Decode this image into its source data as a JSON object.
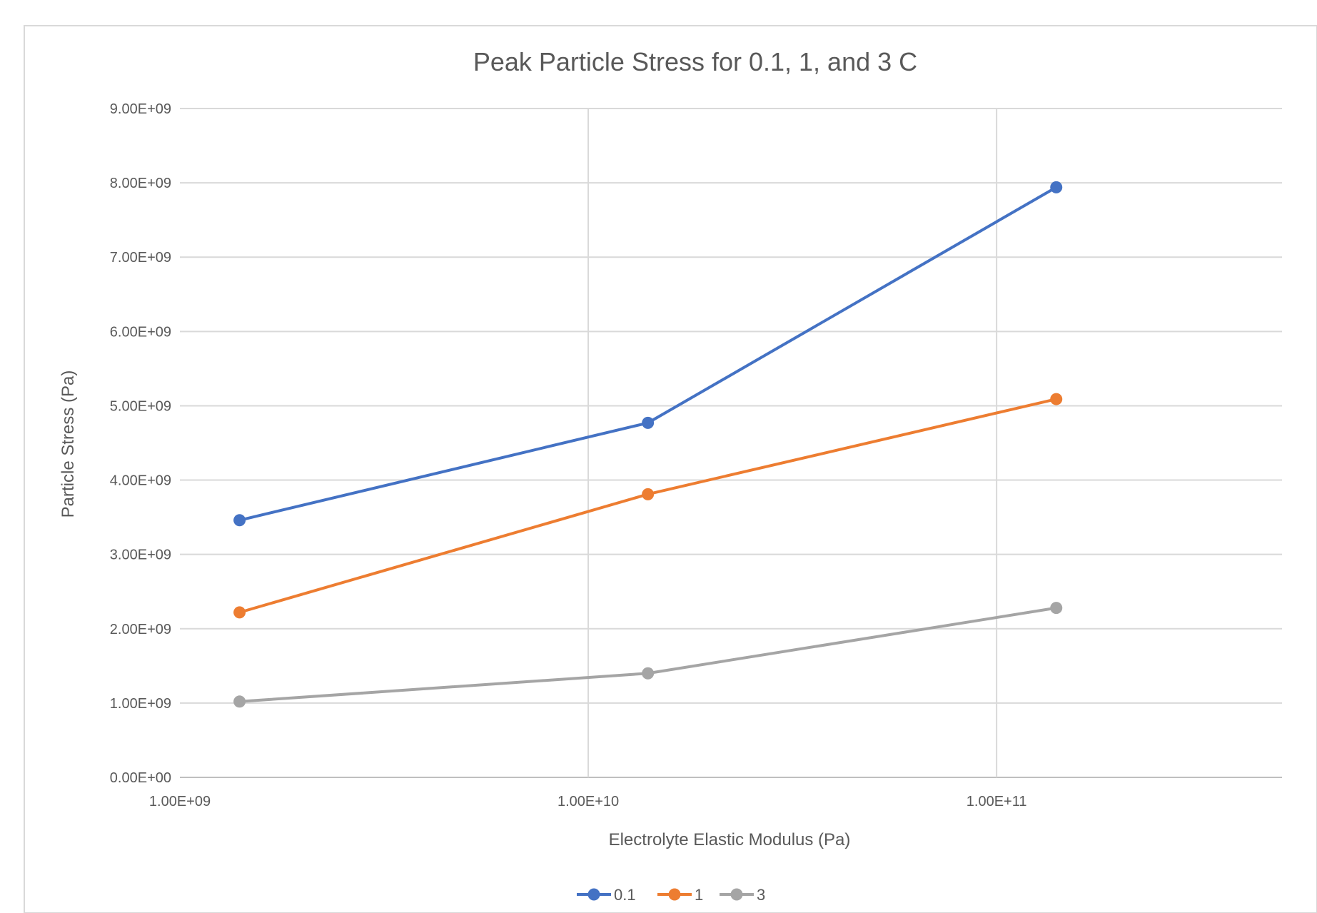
{
  "chart_data": {
    "type": "line",
    "title": "Peak Particle Stress for 0.1, 1, and 3 C",
    "xlabel": "Electrolyte Elastic Modulus (Pa)",
    "ylabel": "Particle Stress (Pa)",
    "x_scale": "log",
    "xlim": [
      1000000000,
      500000000000
    ],
    "ylim": [
      0,
      9000000000
    ],
    "x_ticks": [
      1000000000,
      10000000000,
      100000000000
    ],
    "x_tick_labels": [
      "1.00E+09",
      "1.00E+10",
      "1.00E+11"
    ],
    "y_ticks": [
      0,
      1000000000,
      2000000000,
      3000000000,
      4000000000,
      5000000000,
      6000000000,
      7000000000,
      8000000000,
      9000000000
    ],
    "y_tick_labels": [
      "0.00E+00",
      "1.00E+09",
      "2.00E+09",
      "3.00E+09",
      "4.00E+09",
      "5.00E+09",
      "6.00E+09",
      "7.00E+09",
      "8.00E+09",
      "9.00E+09"
    ],
    "grid": true,
    "legend_position": "bottom",
    "x": [
      1400000000,
      14000000000,
      140000000000
    ],
    "series": [
      {
        "name": "0.1",
        "color": "#4472C4",
        "values": [
          3460000000,
          4770000000,
          7940000000
        ]
      },
      {
        "name": "1",
        "color": "#ED7D31",
        "values": [
          2220000000,
          3810000000,
          5090000000
        ]
      },
      {
        "name": "3",
        "color": "#A5A5A5",
        "values": [
          1020000000,
          1400000000,
          2280000000
        ]
      }
    ]
  }
}
